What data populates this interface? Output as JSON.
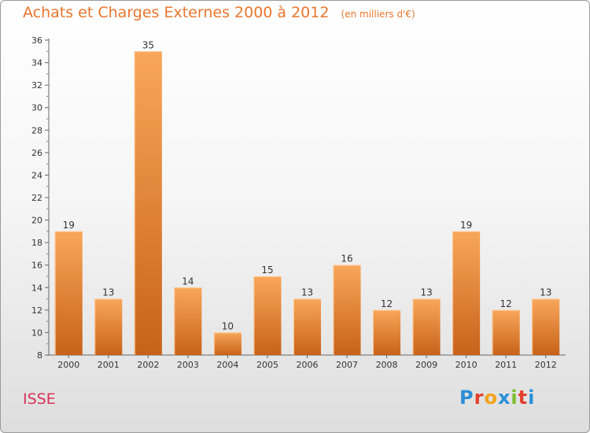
{
  "title": "Achats et Charges Externes 2000 à 2012",
  "unit_note": "(en milliers d'€)",
  "place_name": "ISSE",
  "logo_text": "Proxiti",
  "logo_colors": [
    "#2a8fd6",
    "#e0412e",
    "#f3a21b",
    "#2a8fd6",
    "#7bbf2a",
    "#e0412e",
    "#2a8fd6"
  ],
  "colors": {
    "bar_top": "#f8a75a",
    "bar_bottom": "#c8621a",
    "bar_edge": "#ffc48a",
    "title": "#e8762d",
    "place": "#d8325a"
  },
  "chart_data": {
    "type": "bar",
    "categories": [
      "2000",
      "2001",
      "2002",
      "2003",
      "2004",
      "2005",
      "2006",
      "2007",
      "2008",
      "2009",
      "2010",
      "2011",
      "2012"
    ],
    "values": [
      19,
      13,
      35,
      14,
      10,
      15,
      13,
      16,
      12,
      13,
      19,
      12,
      13
    ],
    "data_labels": [
      "19",
      "13",
      "35",
      "14",
      "10",
      "15",
      "13",
      "16",
      "12",
      "13",
      "19",
      "12",
      "13"
    ],
    "y_ticks": [
      "8",
      "10",
      "12",
      "14",
      "16",
      "18",
      "20",
      "22",
      "24",
      "26",
      "28",
      "30",
      "32",
      "34",
      "36"
    ],
    "ylim": [
      8,
      36
    ],
    "grid": false,
    "legend": "none"
  }
}
